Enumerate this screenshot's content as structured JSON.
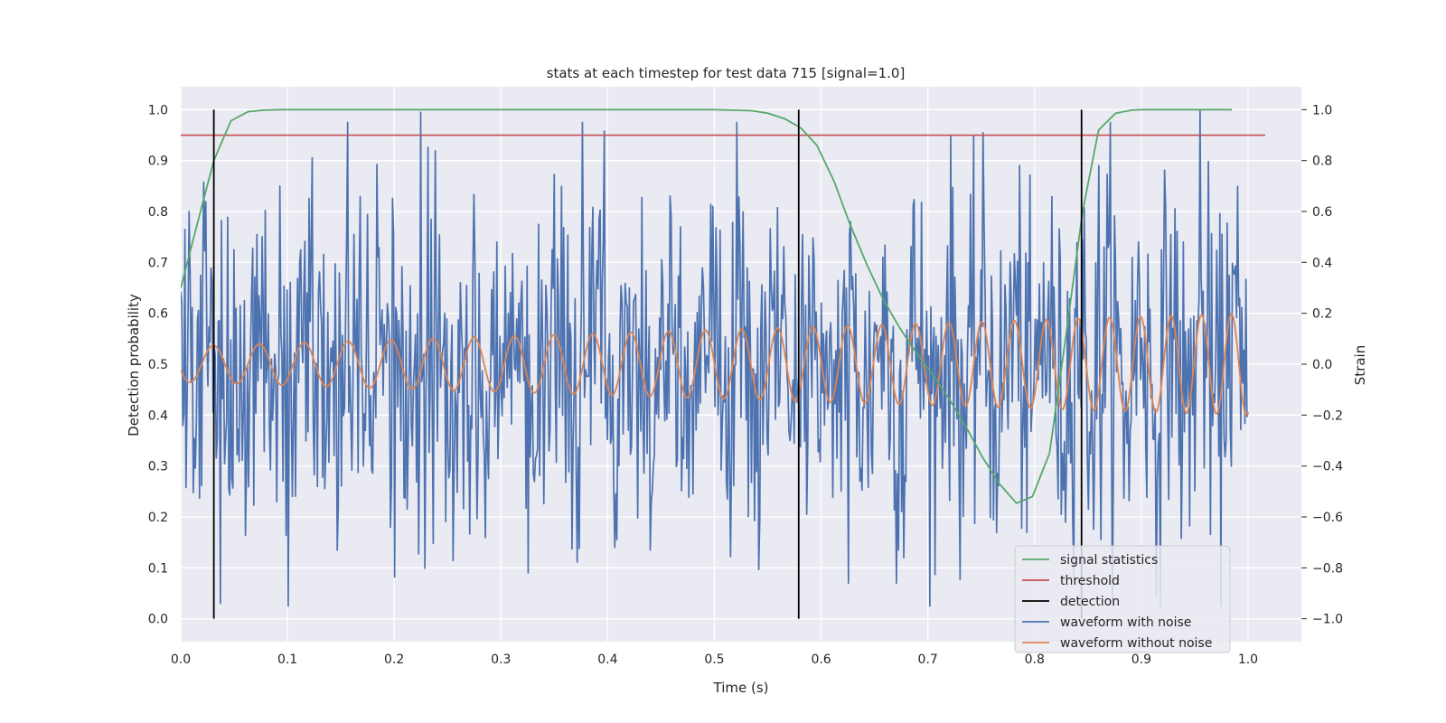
{
  "chart_data": {
    "type": "line",
    "title": "stats at each timestep for test data 715 [signal=1.0]",
    "xlabel": "Time (s)",
    "ylabel": "Detection probability",
    "ylabel_right": "Strain",
    "xlim": [
      0.0,
      1.05
    ],
    "ylim": [
      -0.045,
      1.045
    ],
    "ylim_right": [
      -1.0,
      1.0
    ],
    "xticks": [
      "0.0",
      "0.1",
      "0.2",
      "0.3",
      "0.4",
      "0.5",
      "0.6",
      "0.7",
      "0.8",
      "0.9",
      "1.0"
    ],
    "yticks": [
      "0.0",
      "0.1",
      "0.2",
      "0.3",
      "0.4",
      "0.5",
      "0.6",
      "0.7",
      "0.8",
      "0.9",
      "1.0"
    ],
    "yticks_right": [
      "−1.0",
      "−0.8",
      "−0.6",
      "−0.4",
      "−0.2",
      "0.0",
      "0.2",
      "0.4",
      "0.6",
      "0.8",
      "1.0"
    ],
    "grid": true,
    "legend_position": "lower-right",
    "colors": {
      "signal_statistics": "#55a868",
      "threshold": "#c44e52",
      "detection": "#000000",
      "waveform_with_noise": "#4c72b0",
      "waveform_without_noise": "#dd8452",
      "axes_background": "#eaeaf2",
      "grid": "#ffffff"
    },
    "legend": [
      "signal statistics",
      "threshold",
      "detection",
      "waveform with noise",
      "waveform without noise"
    ],
    "series": [
      {
        "name": "signal statistics",
        "axis": "left",
        "x": [
          0.0,
          0.016,
          0.031,
          0.047,
          0.063,
          0.078,
          0.094,
          0.2,
          0.3,
          0.4,
          0.5,
          0.535,
          0.55,
          0.566,
          0.581,
          0.596,
          0.612,
          0.627,
          0.643,
          0.658,
          0.674,
          0.689,
          0.705,
          0.72,
          0.736,
          0.751,
          0.767,
          0.783,
          0.798,
          0.814,
          0.829,
          0.845,
          0.86,
          0.876,
          0.891,
          0.9,
          0.985
        ],
        "y": [
          0.65,
          0.78,
          0.9,
          0.978,
          0.996,
          0.999,
          1.0,
          1.0,
          1.0,
          1.0,
          1.0,
          0.998,
          0.993,
          0.982,
          0.964,
          0.93,
          0.86,
          0.775,
          0.695,
          0.628,
          0.57,
          0.523,
          0.478,
          0.432,
          0.376,
          0.318,
          0.265,
          0.227,
          0.24,
          0.325,
          0.55,
          0.8,
          0.96,
          0.993,
          0.999,
          1.0,
          1.0
        ]
      },
      {
        "name": "threshold",
        "axis": "left",
        "x": [
          0.0,
          1.05
        ],
        "y": [
          0.95,
          0.95
        ]
      },
      {
        "name": "detection",
        "axis": "left",
        "type": "vlines",
        "x": [
          0.031,
          0.579,
          0.844
        ],
        "y_range": [
          0.0,
          1.0
        ]
      },
      {
        "name": "waveform with noise",
        "axis": "right",
        "x_range": [
          0.0,
          1.0
        ],
        "n_points": 1024,
        "amplitude": 0.33,
        "noise": true,
        "spikes": [
          {
            "x": 0.225,
            "y": 0.99
          },
          {
            "x": 0.955,
            "y": 1.0
          },
          {
            "x": 0.008,
            "y": 0.6
          },
          {
            "x": 0.037,
            "y": -0.94
          },
          {
            "x": 0.626,
            "y": -0.86
          },
          {
            "x": 0.677,
            "y": -0.76
          },
          {
            "x": 0.326,
            "y": -0.82
          },
          {
            "x": 0.86,
            "y": 0.78
          },
          {
            "x": 0.093,
            "y": 0.7
          },
          {
            "x": 0.147,
            "y": -0.73
          }
        ]
      },
      {
        "name": "waveform without noise",
        "axis": "right",
        "type": "chirp",
        "x_range": [
          0.0,
          1.0
        ],
        "amplitude_start": 0.07,
        "amplitude_end": 0.2,
        "frequency_start_hz": 22.5,
        "frequency_end_hz": 36,
        "phase_offset": 3.5
      }
    ]
  }
}
